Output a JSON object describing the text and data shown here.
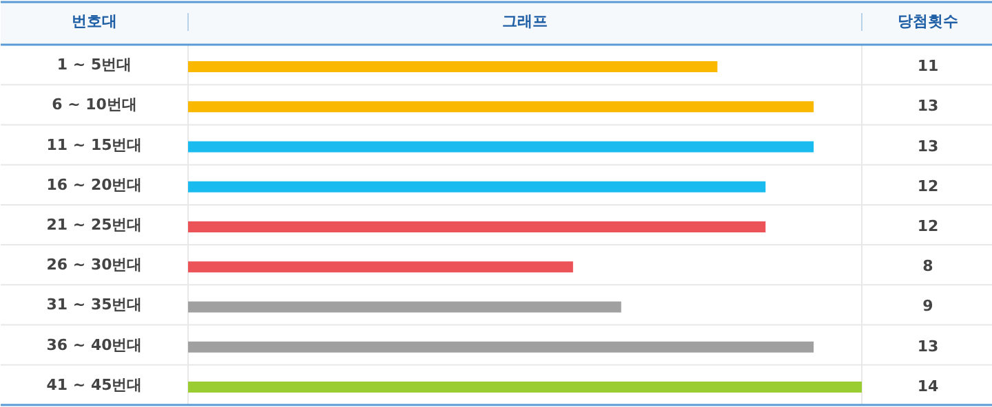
{
  "chart_data": {
    "type": "bar",
    "orientation": "horizontal",
    "ylabel": "번호대",
    "xlabel": "그래프",
    "y2label": "당첨횟수",
    "categories": [
      "1 ~ 5번대",
      "6 ~ 10번대",
      "11 ~ 15번대",
      "16 ~ 20번대",
      "21 ~ 25번대",
      "26 ~ 30번대",
      "31 ~ 35번대",
      "36 ~ 40번대",
      "41 ~ 45번대"
    ],
    "values": [
      11,
      13,
      13,
      12,
      12,
      8,
      9,
      13,
      14
    ],
    "colors": [
      "#fbb800",
      "#fbb800",
      "#1abcf0",
      "#1abcf0",
      "#ec5359",
      "#ec5359",
      "#a0a0a0",
      "#a0a0a0",
      "#9acd32"
    ],
    "data_labels": true
  }
}
